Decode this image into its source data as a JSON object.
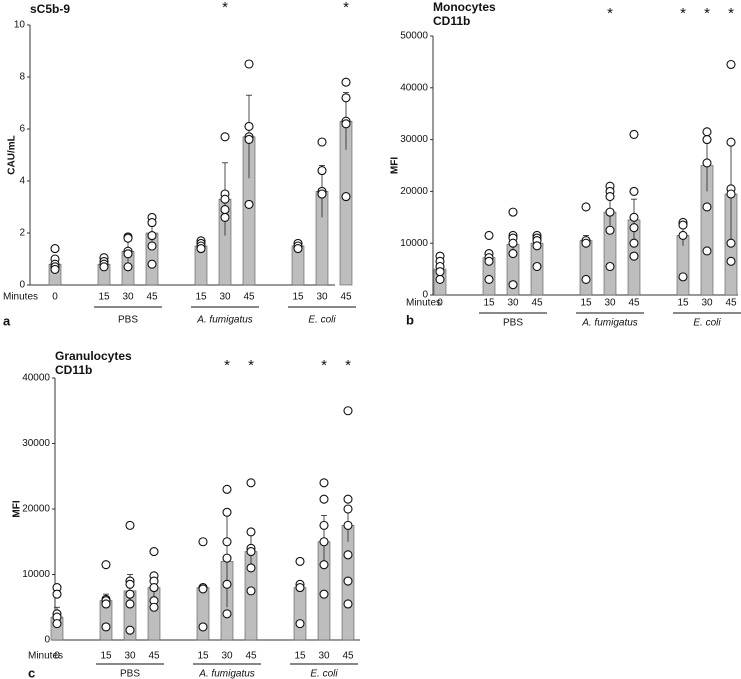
{
  "chart_data": [
    {
      "type": "bar",
      "title": [
        "sC5b-9"
      ],
      "panel_label": "a",
      "ylabel": "CAU/mL",
      "xlabel": "Minutes",
      "ylim": [
        0,
        10
      ],
      "yticks": [
        0,
        2,
        4,
        6,
        8,
        10
      ],
      "bar_color": "#bdbdbd",
      "groups": [
        {
          "label": null,
          "italic": false,
          "categories": [
            "0"
          ]
        },
        {
          "label": "PBS",
          "italic": false,
          "categories": [
            "15",
            "30",
            "45"
          ]
        },
        {
          "label": "A. fumigatus",
          "italic": true,
          "categories": [
            "15",
            "30",
            "45"
          ]
        },
        {
          "label": "E. coli",
          "italic": true,
          "categories": [
            "15",
            "30",
            "45"
          ]
        }
      ],
      "values": [
        0.8,
        0.8,
        1.3,
        2.0,
        1.5,
        3.3,
        5.7,
        1.5,
        3.6,
        6.3
      ],
      "errors": [
        0.2,
        0.15,
        0.4,
        0.6,
        0.2,
        1.4,
        1.6,
        0.1,
        1.0,
        1.1
      ],
      "points": [
        [
          1.4,
          1.0,
          0.8,
          0.7,
          0.6
        ],
        [
          1.05,
          0.9,
          0.8,
          0.7
        ],
        [
          1.85,
          1.8,
          1.3,
          1.2,
          0.7
        ],
        [
          2.6,
          2.4,
          1.9,
          1.5,
          0.8
        ],
        [
          1.7,
          1.6,
          1.5,
          1.4
        ],
        [
          5.7,
          3.5,
          3.3,
          2.9,
          2.6
        ],
        [
          8.5,
          6.1,
          5.7,
          5.6,
          3.1
        ],
        [
          1.6,
          1.5,
          1.4
        ],
        [
          5.5,
          4.4,
          3.6,
          3.5,
          3.5
        ],
        [
          7.8,
          7.2,
          6.3,
          6.2,
          3.4
        ]
      ],
      "annotations": [
        null,
        null,
        null,
        null,
        null,
        "*",
        null,
        null,
        null,
        "*"
      ]
    },
    {
      "type": "bar",
      "title": [
        "Monocytes",
        "CD11b"
      ],
      "panel_label": "b",
      "ylabel": "MFI",
      "xlabel": "Minutes",
      "ylim": [
        0,
        50000
      ],
      "yticks": [
        0,
        10000,
        20000,
        30000,
        40000,
        50000
      ],
      "bar_color": "#bdbdbd",
      "groups": [
        {
          "label": null,
          "italic": false,
          "categories": [
            "0"
          ]
        },
        {
          "label": "PBS",
          "italic": false,
          "categories": [
            "15",
            "30",
            "45"
          ]
        },
        {
          "label": "A. fumigatus",
          "italic": true,
          "categories": [
            "15",
            "30",
            "45"
          ]
        },
        {
          "label": "E. coli",
          "italic": true,
          "categories": [
            "15",
            "30",
            "45"
          ]
        }
      ],
      "values": [
        5000,
        7200,
        9800,
        10000,
        10500,
        16000,
        14500,
        11500,
        25000,
        19500
      ],
      "errors": [
        1000,
        1000,
        1500,
        1000,
        1000,
        3000,
        4000,
        2000,
        5000,
        10000
      ],
      "points": [
        [
          7500,
          6500,
          5500,
          4500,
          3000
        ],
        [
          11500,
          8000,
          7200,
          6500,
          3000
        ],
        [
          16000,
          11500,
          11000,
          10000,
          8000,
          2000
        ],
        [
          11500,
          11000,
          10500,
          9500,
          5500
        ],
        [
          17000,
          10500,
          10000,
          3000
        ],
        [
          21000,
          20000,
          19000,
          16000,
          12500,
          5500
        ],
        [
          31000,
          20000,
          15000,
          13000,
          10000,
          7500
        ],
        [
          14000,
          13500,
          11500,
          3500
        ],
        [
          31500,
          30000,
          25500,
          17000,
          8500
        ],
        [
          44500,
          29500,
          20500,
          19500,
          10000,
          6500
        ]
      ],
      "annotations": [
        null,
        null,
        null,
        null,
        null,
        "*",
        null,
        "*",
        "*",
        "*"
      ]
    },
    {
      "type": "bar",
      "title": [
        "Granulocytes",
        "CD11b"
      ],
      "panel_label": "c",
      "ylabel": "MFI",
      "xlabel": "Minutes",
      "ylim": [
        0,
        40000
      ],
      "yticks": [
        0,
        10000,
        20000,
        30000,
        40000
      ],
      "bar_color": "#bdbdbd",
      "groups": [
        {
          "label": null,
          "italic": false,
          "categories": [
            "0"
          ]
        },
        {
          "label": "PBS",
          "italic": false,
          "categories": [
            "15",
            "30",
            "45"
          ]
        },
        {
          "label": "A. fumigatus",
          "italic": true,
          "categories": [
            "15",
            "30",
            "45"
          ]
        },
        {
          "label": "E. coli",
          "italic": true,
          "categories": [
            "15",
            "30",
            "45"
          ]
        }
      ],
      "values": [
        3500,
        6000,
        7500,
        8000,
        8000,
        12000,
        13500,
        8000,
        15000,
        17500
      ],
      "errors": [
        1500,
        1000,
        2500,
        2000,
        500,
        7000,
        3000,
        500,
        4000,
        2500
      ],
      "points": [
        [
          8000,
          7000,
          4000,
          3500,
          2500
        ],
        [
          11500,
          6200,
          6000,
          5500,
          2000
        ],
        [
          17500,
          9000,
          8500,
          7000,
          5500,
          1500
        ],
        [
          13500,
          9800,
          9000,
          8000,
          6000,
          5000
        ],
        [
          15000,
          8000,
          7800,
          2000
        ],
        [
          23000,
          19500,
          15000,
          12500,
          8500,
          4000
        ],
        [
          24000,
          16500,
          14000,
          13500,
          11000,
          7500
        ],
        [
          12000,
          8500,
          8000,
          2500
        ],
        [
          24000,
          21500,
          17500,
          15000,
          11500,
          7000
        ],
        [
          35000,
          21500,
          20000,
          17500,
          13000,
          9000,
          5500
        ]
      ],
      "annotations": [
        null,
        null,
        null,
        null,
        null,
        "*",
        "*",
        null,
        "*",
        "*"
      ]
    }
  ]
}
